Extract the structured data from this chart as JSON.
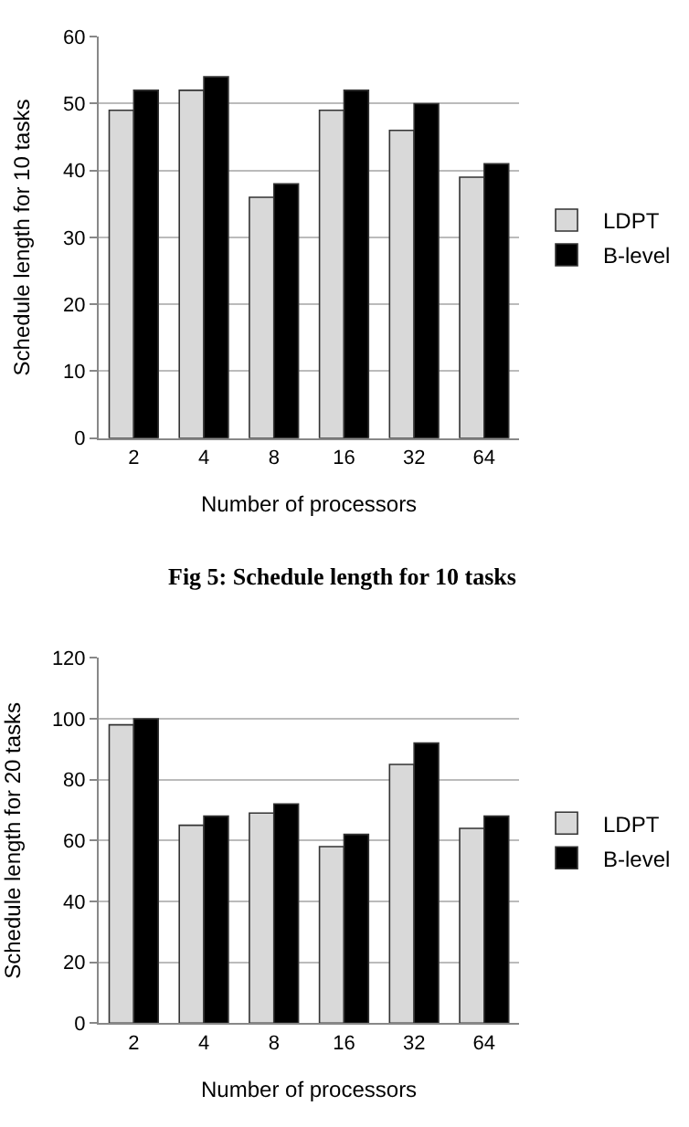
{
  "chart_data": [
    {
      "type": "bar",
      "xlabel": "Number of processors",
      "ylabel": "Schedule length for 10 tasks",
      "categories": [
        "2",
        "4",
        "8",
        "16",
        "32",
        "64"
      ],
      "series": [
        {
          "name": "LDPT",
          "color": "#d9d9d9",
          "values": [
            49,
            52,
            36,
            49,
            46,
            39
          ]
        },
        {
          "name": "B-level",
          "color": "#000000",
          "values": [
            52,
            54,
            38,
            52,
            50,
            41
          ]
        }
      ],
      "ylim": [
        0,
        60
      ],
      "yticks": [
        0,
        10,
        20,
        30,
        40,
        50,
        60
      ],
      "grid": "y",
      "legend": "right",
      "annotations": [
        "Fig 5: Schedule length for 10 tasks"
      ]
    },
    {
      "type": "bar",
      "xlabel": "Number of processors",
      "ylabel": "Schedule length for 20 tasks",
      "categories": [
        "2",
        "4",
        "8",
        "16",
        "32",
        "64"
      ],
      "series": [
        {
          "name": "LDPT",
          "color": "#d9d9d9",
          "values": [
            98,
            65,
            69,
            58,
            85,
            64
          ]
        },
        {
          "name": "B-level",
          "color": "#000000",
          "values": [
            100,
            68,
            72,
            62,
            92,
            68
          ]
        }
      ],
      "ylim": [
        0,
        120
      ],
      "yticks": [
        0,
        20,
        40,
        60,
        80,
        100,
        120
      ],
      "grid": "y",
      "legend": "right"
    }
  ]
}
